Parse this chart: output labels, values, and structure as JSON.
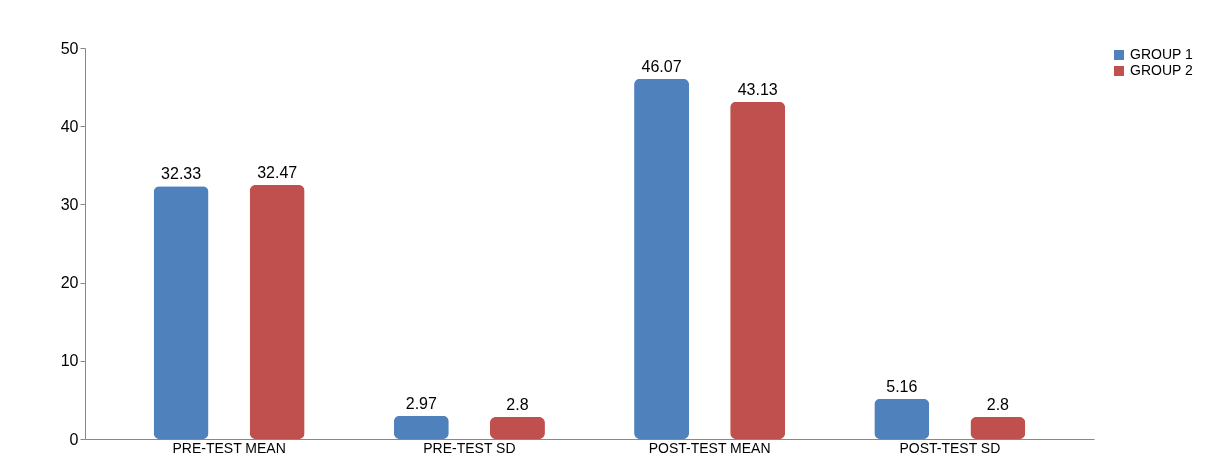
{
  "chart_data": {
    "type": "bar",
    "categories": [
      "PRE-TEST MEAN",
      "PRE-TEST SD",
      "POST-TEST MEAN",
      "POST-TEST SD"
    ],
    "series": [
      {
        "name": "GROUP 1",
        "color": "#4f81bd",
        "values": [
          32.33,
          2.97,
          46.07,
          5.16
        ]
      },
      {
        "name": "GROUP 2",
        "color": "#c0504d",
        "values": [
          32.47,
          2.8,
          43.13,
          2.8
        ]
      }
    ],
    "ylim": [
      0,
      50
    ],
    "yticks": [
      0,
      10,
      20,
      30,
      40,
      50
    ],
    "grid": false,
    "legend": "right",
    "data_labels": true
  }
}
